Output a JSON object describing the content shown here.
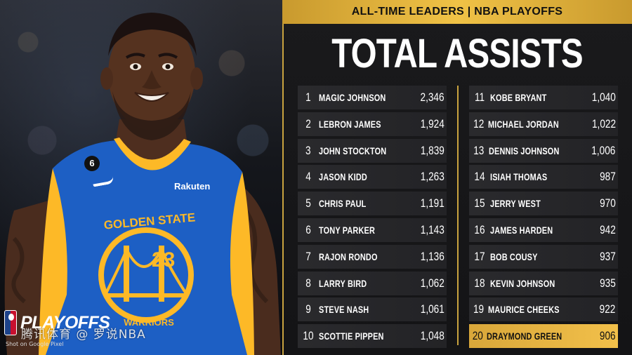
{
  "header": {
    "subtitle": "ALL-TIME LEADERS | NBA PLAYOFFS",
    "title": "TOTAL ASSISTS"
  },
  "photo": {
    "jersey_brand": "GOLDEN STATE",
    "jersey_lower": "WARRIORS",
    "jersey_number": "23",
    "sponsor": "Rakuten",
    "patch_number": "6",
    "logo_text": "PLAYOFFS",
    "watermark": "腾讯体育 @ 罗说NBA",
    "shot_on": "Shot on Google Pixel"
  },
  "leaders_left": [
    {
      "rank": "1",
      "name": "MAGIC JOHNSON",
      "assists": "2,346"
    },
    {
      "rank": "2",
      "name": "LEBRON JAMES",
      "assists": "1,924"
    },
    {
      "rank": "3",
      "name": "JOHN STOCKTON",
      "assists": "1,839"
    },
    {
      "rank": "4",
      "name": "JASON KIDD",
      "assists": "1,263"
    },
    {
      "rank": "5",
      "name": "CHRIS PAUL",
      "assists": "1,191"
    },
    {
      "rank": "6",
      "name": "TONY PARKER",
      "assists": "1,143"
    },
    {
      "rank": "7",
      "name": "RAJON RONDO",
      "assists": "1,136"
    },
    {
      "rank": "8",
      "name": "LARRY BIRD",
      "assists": "1,062"
    },
    {
      "rank": "9",
      "name": "STEVE NASH",
      "assists": "1,061"
    },
    {
      "rank": "10",
      "name": "SCOTTIE PIPPEN",
      "assists": "1,048"
    }
  ],
  "leaders_right": [
    {
      "rank": "11",
      "name": "KOBE BRYANT",
      "assists": "1,040"
    },
    {
      "rank": "12",
      "name": "MICHAEL JORDAN",
      "assists": "1,022"
    },
    {
      "rank": "13",
      "name": "DENNIS JOHNSON",
      "assists": "1,006"
    },
    {
      "rank": "14",
      "name": "ISIAH THOMAS",
      "assists": "987"
    },
    {
      "rank": "15",
      "name": "JERRY WEST",
      "assists": "970"
    },
    {
      "rank": "16",
      "name": "JAMES HARDEN",
      "assists": "942"
    },
    {
      "rank": "17",
      "name": "BOB COUSY",
      "assists": "937"
    },
    {
      "rank": "18",
      "name": "KEVIN JOHNSON",
      "assists": "935"
    },
    {
      "rank": "19",
      "name": "MAURICE CHEEKS",
      "assists": "922"
    },
    {
      "rank": "20",
      "name": "DRAYMOND GREEN",
      "assists": "906"
    }
  ],
  "colors": {
    "gold": "#f0c246",
    "jersey_blue": "#1d5fc4",
    "jersey_yellow": "#fdb927",
    "panel": "#1a1a1c"
  }
}
